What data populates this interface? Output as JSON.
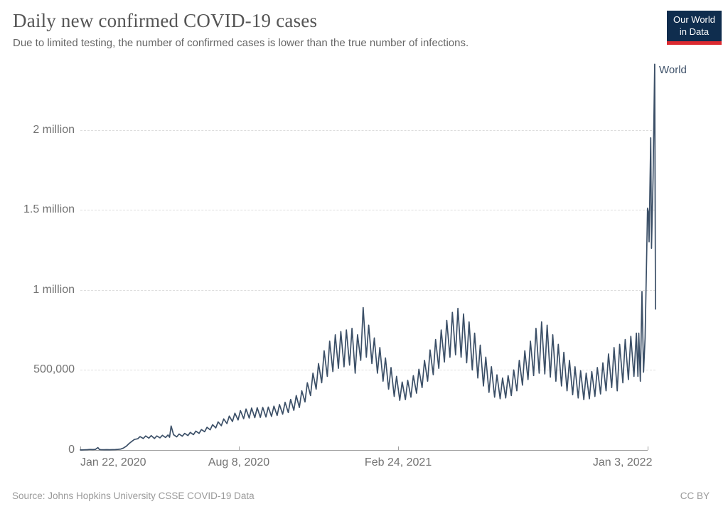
{
  "header": {
    "title": "Daily new confirmed COVID-19 cases",
    "subtitle": "Due to limited testing, the number of confirmed cases is lower than the true number of infections."
  },
  "logo": {
    "line1": "Our World",
    "line2": "in Data"
  },
  "entity_label": "World",
  "footer": {
    "source": "Source: Johns Hopkins University CSSE COVID-19 Data",
    "license": "CC BY"
  },
  "colors": {
    "line": "#3b4f67",
    "grid": "#dddddd",
    "axis": "#a1a1a1",
    "tick_label": "#737373",
    "entity_label": "#3d5068",
    "logo_bg": "#0f2d4e",
    "logo_bar": "#dc2a30"
  },
  "chart_data": {
    "type": "line",
    "title": "Daily new confirmed COVID-19 cases",
    "series_name": "World",
    "x_axis_kind": "date",
    "x_domain_days": [
      0,
      722
    ],
    "y_range": [
      0,
      2420000
    ],
    "grid": "dashed-horizontal",
    "legend_position": "right-of-line",
    "y_ticks": [
      {
        "value": 0,
        "label": "0"
      },
      {
        "value": 500000,
        "label": "500,000"
      },
      {
        "value": 1000000,
        "label": "1 million"
      },
      {
        "value": 1500000,
        "label": "1.5 million"
      },
      {
        "value": 2000000,
        "label": "2 million"
      }
    ],
    "x_ticks": [
      {
        "day": 0,
        "label": "Jan 22, 2020",
        "align": "left"
      },
      {
        "day": 199,
        "label": "Aug 8, 2020",
        "align": "center"
      },
      {
        "day": 399,
        "label": "Feb 24, 2021",
        "align": "center"
      },
      {
        "day": 712,
        "label": "Jan 3, 2022",
        "align": "right"
      }
    ],
    "points": [
      [
        0,
        600
      ],
      [
        2,
        500
      ],
      [
        5,
        1500
      ],
      [
        9,
        2000
      ],
      [
        12,
        3500
      ],
      [
        16,
        2500
      ],
      [
        19,
        3800
      ],
      [
        22,
        15000
      ],
      [
        24,
        3000
      ],
      [
        26,
        2200
      ],
      [
        30,
        1800
      ],
      [
        33,
        2200
      ],
      [
        37,
        1900
      ],
      [
        40,
        2400
      ],
      [
        44,
        2500
      ],
      [
        47,
        4000
      ],
      [
        51,
        6000
      ],
      [
        54,
        12000
      ],
      [
        58,
        25000
      ],
      [
        61,
        40000
      ],
      [
        65,
        55000
      ],
      [
        68,
        66000
      ],
      [
        72,
        70000
      ],
      [
        75,
        84000
      ],
      [
        79,
        72000
      ],
      [
        82,
        88000
      ],
      [
        86,
        74000
      ],
      [
        89,
        90000
      ],
      [
        93,
        72000
      ],
      [
        96,
        88000
      ],
      [
        100,
        76000
      ],
      [
        103,
        92000
      ],
      [
        107,
        78000
      ],
      [
        110,
        94000
      ],
      [
        112,
        80000
      ],
      [
        114,
        150000
      ],
      [
        117,
        96000
      ],
      [
        121,
        82000
      ],
      [
        124,
        100000
      ],
      [
        128,
        86000
      ],
      [
        131,
        104000
      ],
      [
        135,
        90000
      ],
      [
        138,
        110000
      ],
      [
        142,
        96000
      ],
      [
        145,
        118000
      ],
      [
        149,
        104000
      ],
      [
        152,
        128000
      ],
      [
        156,
        114000
      ],
      [
        159,
        142000
      ],
      [
        163,
        126000
      ],
      [
        166,
        158000
      ],
      [
        170,
        138000
      ],
      [
        173,
        176000
      ],
      [
        177,
        152000
      ],
      [
        180,
        194000
      ],
      [
        184,
        165000
      ],
      [
        187,
        212000
      ],
      [
        191,
        178000
      ],
      [
        194,
        230000
      ],
      [
        198,
        188000
      ],
      [
        201,
        246000
      ],
      [
        205,
        196000
      ],
      [
        208,
        256000
      ],
      [
        212,
        200000
      ],
      [
        215,
        262000
      ],
      [
        219,
        202000
      ],
      [
        222,
        264000
      ],
      [
        226,
        204000
      ],
      [
        229,
        266000
      ],
      [
        233,
        206000
      ],
      [
        236,
        268000
      ],
      [
        240,
        210000
      ],
      [
        243,
        274000
      ],
      [
        247,
        216000
      ],
      [
        250,
        284000
      ],
      [
        254,
        224000
      ],
      [
        257,
        298000
      ],
      [
        261,
        234000
      ],
      [
        264,
        316000
      ],
      [
        268,
        248000
      ],
      [
        271,
        340000
      ],
      [
        275,
        266000
      ],
      [
        278,
        370000
      ],
      [
        282,
        300000
      ],
      [
        285,
        420000
      ],
      [
        289,
        340000
      ],
      [
        292,
        480000
      ],
      [
        296,
        380000
      ],
      [
        299,
        540000
      ],
      [
        303,
        420000
      ],
      [
        306,
        620000
      ],
      [
        310,
        460000
      ],
      [
        313,
        680000
      ],
      [
        317,
        490000
      ],
      [
        320,
        720000
      ],
      [
        324,
        510000
      ],
      [
        327,
        740000
      ],
      [
        331,
        520000
      ],
      [
        334,
        750000
      ],
      [
        338,
        530000
      ],
      [
        341,
        760000
      ],
      [
        345,
        480000
      ],
      [
        348,
        720000
      ],
      [
        352,
        560000
      ],
      [
        355,
        890000
      ],
      [
        359,
        580000
      ],
      [
        362,
        780000
      ],
      [
        366,
        540000
      ],
      [
        369,
        700000
      ],
      [
        373,
        480000
      ],
      [
        376,
        640000
      ],
      [
        380,
        430000
      ],
      [
        383,
        575000
      ],
      [
        387,
        380000
      ],
      [
        390,
        515000
      ],
      [
        394,
        335000
      ],
      [
        397,
        460000
      ],
      [
        401,
        310000
      ],
      [
        404,
        425000
      ],
      [
        408,
        315000
      ],
      [
        411,
        435000
      ],
      [
        415,
        330000
      ],
      [
        418,
        465000
      ],
      [
        422,
        355000
      ],
      [
        425,
        505000
      ],
      [
        429,
        390000
      ],
      [
        432,
        560000
      ],
      [
        436,
        430000
      ],
      [
        439,
        625000
      ],
      [
        443,
        470000
      ],
      [
        446,
        690000
      ],
      [
        450,
        510000
      ],
      [
        453,
        750000
      ],
      [
        457,
        550000
      ],
      [
        460,
        810000
      ],
      [
        464,
        580000
      ],
      [
        467,
        860000
      ],
      [
        471,
        595000
      ],
      [
        474,
        885000
      ],
      [
        478,
        580000
      ],
      [
        481,
        850000
      ],
      [
        485,
        545000
      ],
      [
        488,
        800000
      ],
      [
        492,
        500000
      ],
      [
        495,
        730000
      ],
      [
        499,
        450000
      ],
      [
        502,
        655000
      ],
      [
        506,
        400000
      ],
      [
        509,
        580000
      ],
      [
        513,
        360000
      ],
      [
        516,
        520000
      ],
      [
        520,
        330000
      ],
      [
        523,
        470000
      ],
      [
        527,
        320000
      ],
      [
        530,
        450000
      ],
      [
        534,
        325000
      ],
      [
        537,
        465000
      ],
      [
        541,
        340000
      ],
      [
        544,
        500000
      ],
      [
        548,
        370000
      ],
      [
        551,
        560000
      ],
      [
        555,
        405000
      ],
      [
        558,
        620000
      ],
      [
        562,
        440000
      ],
      [
        565,
        680000
      ],
      [
        569,
        465000
      ],
      [
        572,
        760000
      ],
      [
        576,
        480000
      ],
      [
        579,
        800000
      ],
      [
        583,
        475000
      ],
      [
        586,
        780000
      ],
      [
        590,
        455000
      ],
      [
        593,
        720000
      ],
      [
        597,
        430000
      ],
      [
        600,
        660000
      ],
      [
        604,
        400000
      ],
      [
        607,
        610000
      ],
      [
        611,
        370000
      ],
      [
        614,
        560000
      ],
      [
        618,
        345000
      ],
      [
        621,
        520000
      ],
      [
        625,
        325000
      ],
      [
        628,
        495000
      ],
      [
        632,
        315000
      ],
      [
        635,
        480000
      ],
      [
        639,
        320000
      ],
      [
        642,
        490000
      ],
      [
        646,
        335000
      ],
      [
        649,
        515000
      ],
      [
        653,
        350000
      ],
      [
        656,
        545000
      ],
      [
        660,
        370000
      ],
      [
        663,
        600000
      ],
      [
        667,
        390000
      ],
      [
        670,
        640000
      ],
      [
        674,
        370000
      ],
      [
        677,
        660000
      ],
      [
        681,
        420000
      ],
      [
        684,
        690000
      ],
      [
        688,
        440000
      ],
      [
        691,
        710000
      ],
      [
        695,
        460000
      ],
      [
        698,
        730000
      ],
      [
        700,
        460000
      ],
      [
        701,
        730000
      ],
      [
        703,
        430000
      ],
      [
        705,
        990000
      ],
      [
        707,
        486000
      ],
      [
        709,
        700000
      ],
      [
        711,
        1240000
      ],
      [
        712,
        1510000
      ],
      [
        713,
        1490000
      ],
      [
        714,
        1300000
      ],
      [
        716,
        1950000
      ],
      [
        717,
        1260000
      ],
      [
        719,
        1700000
      ],
      [
        721,
        2410000
      ],
      [
        722,
        880000
      ]
    ]
  }
}
